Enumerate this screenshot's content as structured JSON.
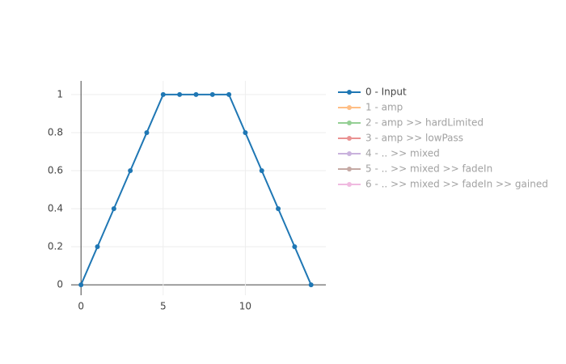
{
  "chart_data": {
    "type": "line",
    "x": [
      0,
      1,
      2,
      3,
      4,
      5,
      6,
      7,
      8,
      9,
      10,
      11,
      12,
      13,
      14
    ],
    "series": [
      {
        "name": "0 - Input",
        "color": "#1f77b4",
        "values": [
          0,
          0.2,
          0.4,
          0.6,
          0.8,
          1,
          1,
          1,
          1,
          1,
          0.8,
          0.6,
          0.4,
          0.2,
          0
        ]
      },
      {
        "name": "1 - amp",
        "color": "#ff7f0e",
        "visible": "legendonly"
      },
      {
        "name": "2 - amp >> hardLimited",
        "color": "#2ca02c",
        "visible": "legendonly"
      },
      {
        "name": "3 - amp >> lowPass",
        "color": "#d62728",
        "visible": "legendonly"
      },
      {
        "name": "4 - .. >> mixed",
        "color": "#9467bd",
        "visible": "legendonly"
      },
      {
        "name": "5 - .. >> mixed >> fadeIn",
        "color": "#8c564b",
        "visible": "legendonly"
      },
      {
        "name": "6 - .. >> mixed >> fadeIn >> gained",
        "color": "#e377c2",
        "visible": "legendonly"
      }
    ],
    "xlim": [
      -0.6,
      14.9
    ],
    "ylim": [
      -0.055,
      1.072
    ],
    "xticks": [
      0,
      5,
      10
    ],
    "yticks": [
      0,
      0.2,
      0.4,
      0.6,
      0.8,
      1
    ],
    "grid": true,
    "legend": "right"
  }
}
